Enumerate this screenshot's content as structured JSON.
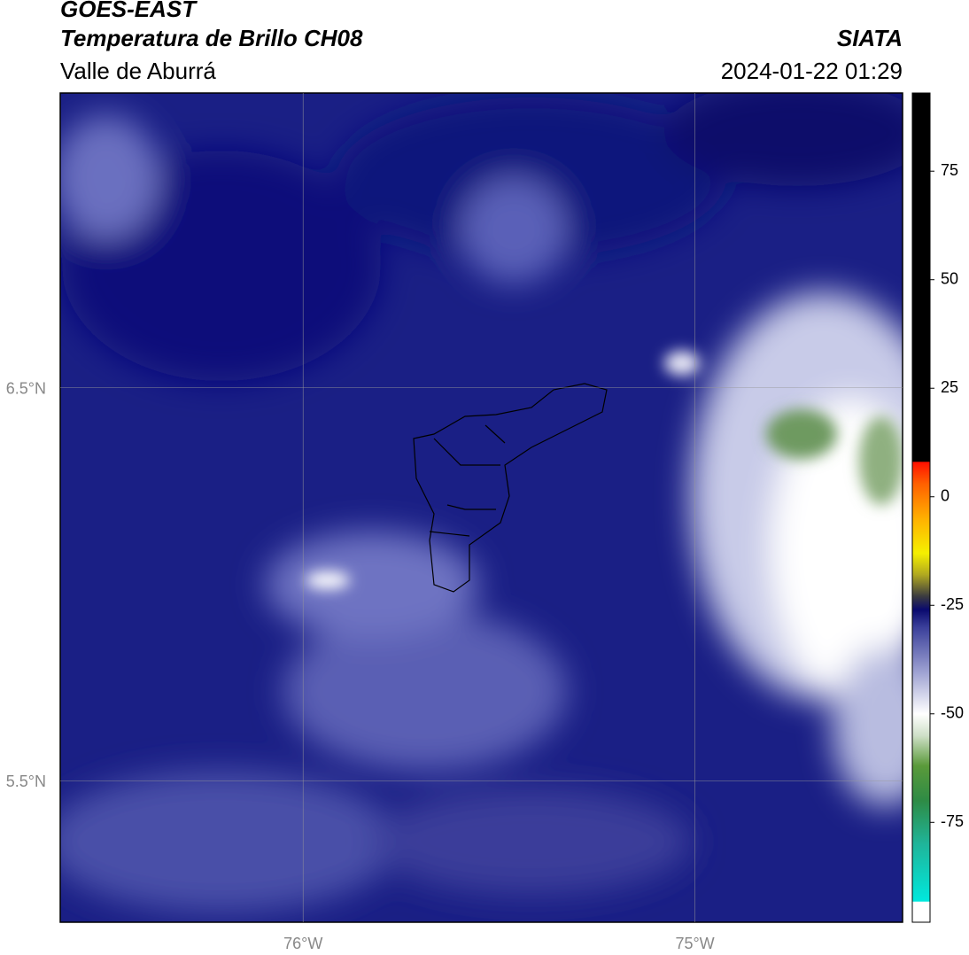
{
  "header": {
    "title": "GOES-EAST",
    "subtitle": "Temperatura de Brillo CH08",
    "region": "Valle de Aburrá",
    "source": "SIATA",
    "timestamp": "2024-01-22 01:29"
  },
  "map": {
    "lonlim": [
      -76.62,
      -74.47
    ],
    "latlim": [
      5.14,
      7.25
    ],
    "lat_gridlines": [
      {
        "value": 6.5,
        "label": "6.5°N"
      },
      {
        "value": 5.5,
        "label": "5.5°N"
      }
    ],
    "lon_gridlines": [
      {
        "value": -76,
        "label": "76°W"
      },
      {
        "value": -75,
        "label": "75°W"
      }
    ]
  },
  "colorbar": {
    "lim": [
      -98,
      93
    ],
    "ticks": [
      75,
      50,
      25,
      0,
      -25,
      -50,
      -75
    ],
    "colormap": [
      {
        "value": -98,
        "color": "#ffffff"
      },
      {
        "value": -93.3,
        "color": "#ffffff"
      },
      {
        "value": -93.2,
        "color": "#00e8dd"
      },
      {
        "value": -80,
        "color": "#1fb59a"
      },
      {
        "value": -70,
        "color": "#2e8b45"
      },
      {
        "value": -62,
        "color": "#5a9a3a"
      },
      {
        "value": -55,
        "color": "#cfe0c8"
      },
      {
        "value": -50,
        "color": "#ffffff"
      },
      {
        "value": -40,
        "color": "#9a9ed0"
      },
      {
        "value": -30,
        "color": "#3a3f9a"
      },
      {
        "value": -26,
        "color": "#0a0a6e"
      },
      {
        "value": -23,
        "color": "#3a3a40"
      },
      {
        "value": -18,
        "color": "#b0a820"
      },
      {
        "value": -13,
        "color": "#f5f000"
      },
      {
        "value": -5,
        "color": "#ffb000"
      },
      {
        "value": 3,
        "color": "#ff6000"
      },
      {
        "value": 8,
        "color": "#ff1000"
      },
      {
        "value": 8.1,
        "color": "#000000"
      },
      {
        "value": 93,
        "color": "#000000"
      }
    ]
  }
}
